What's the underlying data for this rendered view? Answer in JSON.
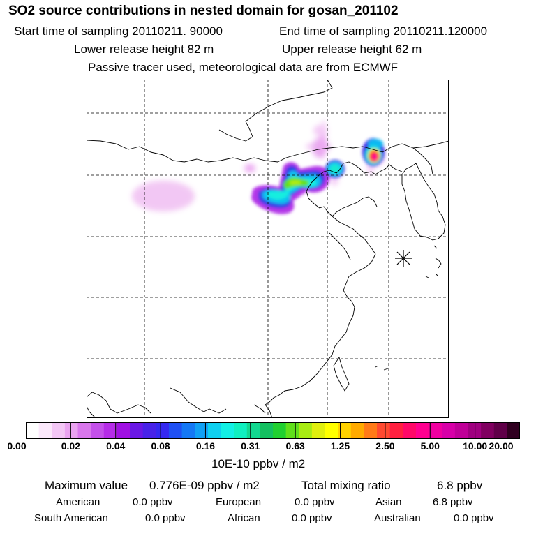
{
  "header": {
    "title": "SO2 source contributions in nested domain for gosan_201102",
    "start_time": "Start time of sampling 20110211. 90000",
    "end_time": "End time of sampling 20110211.120000",
    "lower_height": "Lower release height   82 m",
    "upper_height": "Upper release height   62 m",
    "note": "Passive tracer used, meteorological data are from ECMWF"
  },
  "map": {
    "receptor_marker": "asterisk-icon",
    "coastline_color": "#000000",
    "gridline_color": "#000000"
  },
  "colorbar": {
    "colors": [
      "#ffffff",
      "#fbe8fb",
      "#f3c6f5",
      "#eaa3f0",
      "#d977ec",
      "#c450ea",
      "#b62ce8",
      "#a010e3",
      "#6a18e5",
      "#4822e8",
      "#3528f0",
      "#1f50f3",
      "#1478f5",
      "#10a0f5",
      "#0fd0f0",
      "#12f0e5",
      "#10f0c0",
      "#12d890",
      "#14c060",
      "#20d030",
      "#60e01a",
      "#a8ec12",
      "#e0ef0e",
      "#ffff00",
      "#ffd200",
      "#ffaa00",
      "#ff7a18",
      "#ff4a30",
      "#ff2040",
      "#ff0868",
      "#ff0090",
      "#f000a0",
      "#d800a8",
      "#c00098",
      "#a00080",
      "#800060",
      "#600048",
      "#300020"
    ],
    "ticks": [
      "0.00",
      "0.02",
      "0.04",
      "0.08",
      "0.16",
      "0.31",
      "0.63",
      "1.25",
      "2.50",
      "5.00",
      "10.00",
      "20.00"
    ],
    "unit": "10E-10 ppbv / m2"
  },
  "stats": {
    "max_label": "Maximum value",
    "max_value": "0.776E-09 ppbv / m2",
    "total_label": "Total mixing ratio",
    "total_value": "6.8 ppbv",
    "regions": [
      {
        "name": "American",
        "value": "0.0 ppbv"
      },
      {
        "name": "European",
        "value": "0.0 ppbv"
      },
      {
        "name": "Asian",
        "value": "6.8 ppbv"
      },
      {
        "name": "South American",
        "value": "0.0 ppbv"
      },
      {
        "name": "African",
        "value": "0.0 ppbv"
      },
      {
        "name": "Australian",
        "value": "0.0 ppbv"
      }
    ]
  }
}
